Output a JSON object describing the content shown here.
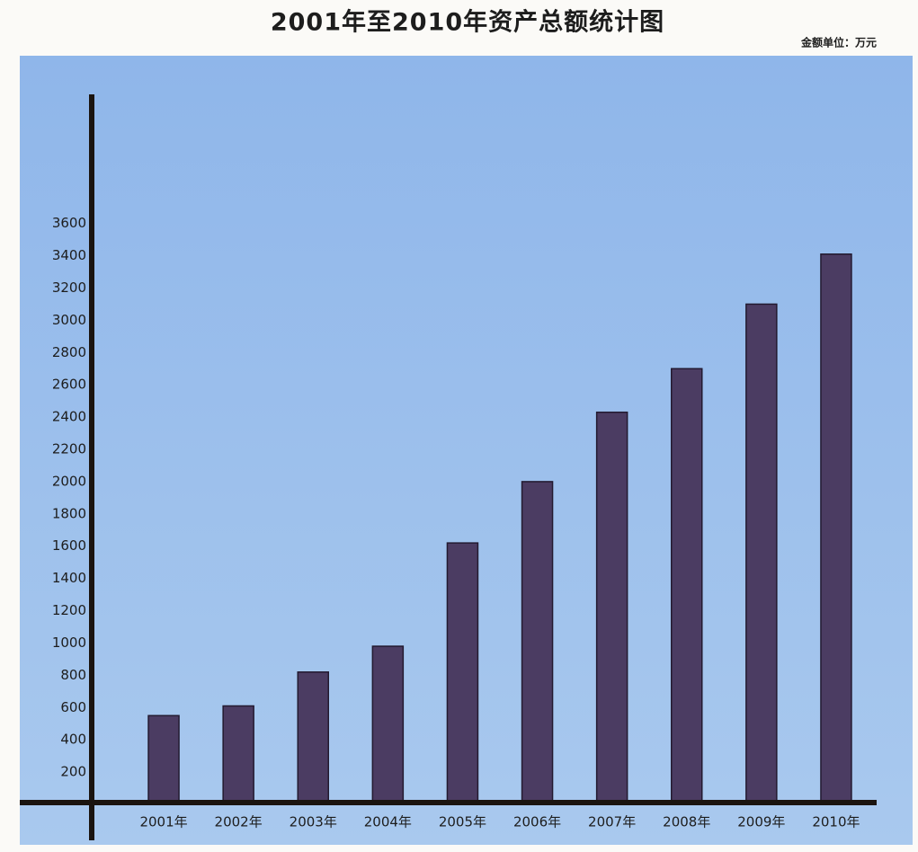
{
  "chart_data": {
    "type": "bar",
    "title": "2001年至2010年资产总额统计图",
    "subtitle": "金额单位：万元",
    "categories": [
      "2001年",
      "2002年",
      "2003年",
      "2004年",
      "2005年",
      "2006年",
      "2007年",
      "2008年",
      "2009年",
      "2010年"
    ],
    "values": [
      550,
      610,
      820,
      980,
      1620,
      2000,
      2430,
      2700,
      3100,
      3410
    ],
    "color": "#4b3c62",
    "ylim": [
      0,
      4400
    ],
    "yticks": [
      200,
      400,
      600,
      800,
      1000,
      1200,
      1400,
      1600,
      1800,
      2000,
      2200,
      2400,
      2600,
      2800,
      3000,
      3200,
      3400,
      3600
    ],
    "grid": false
  }
}
